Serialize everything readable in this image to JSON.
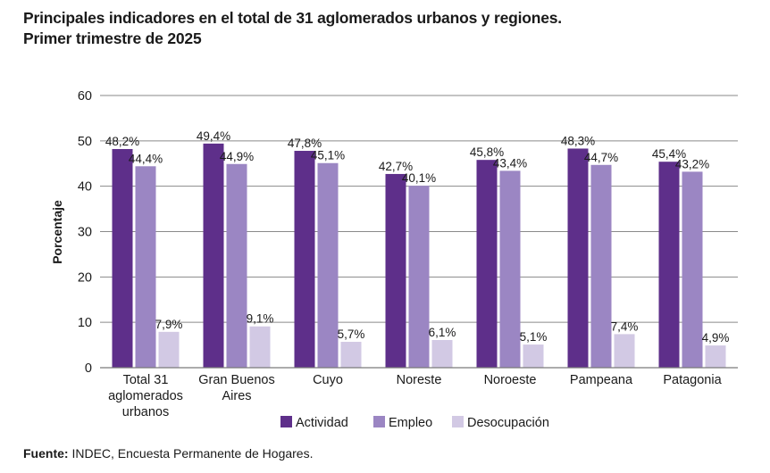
{
  "title_line1": "Principales indicadores en el total de 31 aglomerados urbanos y regiones.",
  "title_line2": "Primer trimestre de 2025",
  "footer": {
    "label": "Fuente:",
    "text": " INDEC, Encuesta Permanente de Hogares."
  },
  "colors": {
    "Actividad": "#5e2f8a",
    "Empleo": "#9b86c3",
    "Desocupación": "#d2c9e4",
    "grid": "#8a8a8a",
    "text": "#1a1a1a"
  },
  "chart_data": {
    "type": "bar",
    "title": "Principales indicadores en el total de 31 aglomerados urbanos y regiones. Primer trimestre de 2025",
    "xlabel": "",
    "ylabel": "Porcentaje",
    "ylim": [
      0,
      60
    ],
    "yticks": [
      0,
      10,
      20,
      30,
      40,
      50,
      60
    ],
    "grid": true,
    "legend_position": "bottom",
    "categories": [
      [
        "Total 31",
        "aglomerados",
        "urbanos"
      ],
      [
        "Gran Buenos",
        "Aires"
      ],
      [
        "Cuyo"
      ],
      [
        "Noreste"
      ],
      [
        "Noroeste"
      ],
      [
        "Pampeana"
      ],
      [
        "Patagonia"
      ]
    ],
    "series": [
      {
        "name": "Actividad",
        "values": [
          48.2,
          49.4,
          47.8,
          42.7,
          45.8,
          48.3,
          45.4
        ],
        "labels": [
          "48,2%",
          "49,4%",
          "47,8%",
          "42,7%",
          "45,8%",
          "48,3%",
          "45,4%"
        ]
      },
      {
        "name": "Empleo",
        "values": [
          44.4,
          44.9,
          45.1,
          40.1,
          43.4,
          44.7,
          43.2
        ],
        "labels": [
          "44,4%",
          "44,9%",
          "45,1%",
          "40,1%",
          "43,4%",
          "44,7%",
          "43,2%"
        ]
      },
      {
        "name": "Desocupación",
        "values": [
          7.9,
          9.1,
          5.7,
          6.1,
          5.1,
          7.4,
          4.9
        ],
        "labels": [
          "7,9%",
          "9,1%",
          "5,7%",
          "6,1%",
          "5,1%",
          "7,4%",
          "4,9%"
        ]
      }
    ]
  }
}
